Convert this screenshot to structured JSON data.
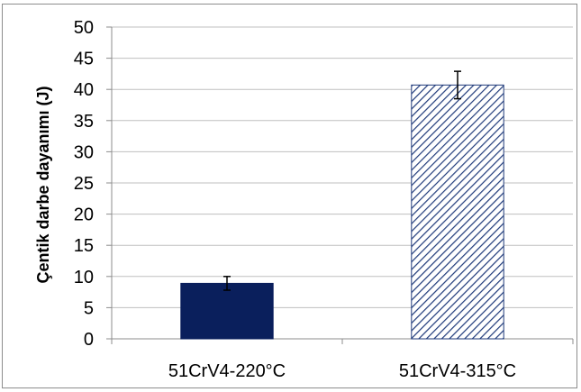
{
  "chart_data": {
    "type": "bar",
    "title": "",
    "xlabel": "",
    "ylabel": "Çentik darbe dayanımı (J)",
    "categories": [
      "51CrV4-220°C",
      "51CrV4-315°C"
    ],
    "values": [
      8.9,
      40.7
    ],
    "error": [
      1.1,
      2.2
    ],
    "ylim": [
      0,
      50
    ],
    "yticks": [
      0,
      5,
      10,
      15,
      20,
      25,
      30,
      35,
      40,
      45,
      50
    ],
    "grid": true,
    "legend": "none",
    "bar_styles": [
      {
        "fill": "solid",
        "color": "#0a1f5c"
      },
      {
        "fill": "diagonal-hatch",
        "color": "#1f3a7a",
        "background": "#ffffff"
      }
    ]
  }
}
